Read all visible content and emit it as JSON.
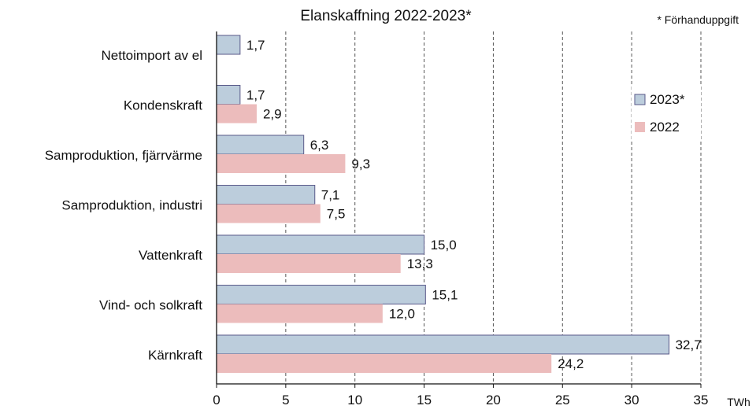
{
  "chart_data": {
    "type": "bar",
    "orientation": "horizontal",
    "title": "Elanskaffning  2022-2023*",
    "footnote": "* Förhanduppgift",
    "categories": [
      "Nettoimport av el",
      "Kondenskraft",
      "Samproduktion, fjärrvärme",
      "Samproduktion, industri",
      "Vattenkraft",
      "Vind- och solkraft",
      "Kärnkraft"
    ],
    "series": [
      {
        "name": "2023*",
        "color": "#bccddc",
        "values": [
          1.7,
          1.7,
          6.3,
          7.1,
          15.0,
          15.1,
          32.7
        ],
        "labels": [
          "1,7",
          "1,7",
          "6,3",
          "7,1",
          "15,0",
          "15,1",
          "32,7"
        ]
      },
      {
        "name": "2022",
        "color": "#ecbcbc",
        "values": [
          null,
          2.9,
          9.3,
          7.5,
          13.3,
          12.0,
          24.2
        ],
        "labels": [
          "",
          "2,9",
          "9,3",
          "7,5",
          "13,3",
          "12,0",
          "24,2"
        ]
      }
    ],
    "xlim": [
      0,
      35
    ],
    "xticks": [
      0,
      5,
      10,
      15,
      20,
      25,
      30,
      35
    ],
    "xtick_labels": [
      "0",
      "5",
      "10",
      "15",
      "20",
      "25",
      "30",
      "35"
    ],
    "xunit": "TWh",
    "gridlines": "vertical dashed",
    "legend_position": "right"
  }
}
